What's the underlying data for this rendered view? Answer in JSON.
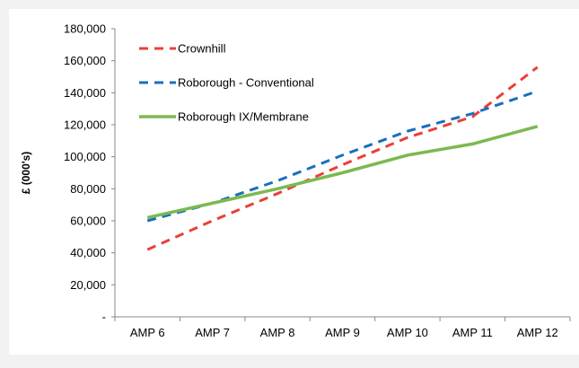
{
  "chart_data": {
    "type": "line",
    "title": "",
    "xlabel": "",
    "ylabel": "£ (000's)",
    "categories": [
      "AMP 6",
      "AMP 7",
      "AMP 8",
      "AMP 9",
      "AMP 10",
      "AMP 11",
      "AMP 12"
    ],
    "y_tick_labels": [
      "-",
      "20,000",
      "40,000",
      "60,000",
      "80,000",
      "100,000",
      "120,000",
      "140,000",
      "160,000",
      "180,000"
    ],
    "ylim": [
      0,
      180000
    ],
    "grid": false,
    "legend_position": "top-left",
    "series": [
      {
        "name": "Crownhill",
        "color": "#e8403a",
        "dash": "dashed",
        "values": [
          42000,
          60000,
          77000,
          95000,
          112000,
          125000,
          156000
        ]
      },
      {
        "name": "Roborough - Conventional",
        "color": "#1a6ebd",
        "dash": "dashed",
        "values": [
          60000,
          71000,
          85000,
          101000,
          116000,
          127000,
          141000
        ]
      },
      {
        "name": "Roborough IX/Membrane",
        "color": "#7cb950",
        "dash": "solid",
        "values": [
          62000,
          71000,
          80000,
          90000,
          101000,
          108000,
          119000
        ]
      }
    ]
  }
}
